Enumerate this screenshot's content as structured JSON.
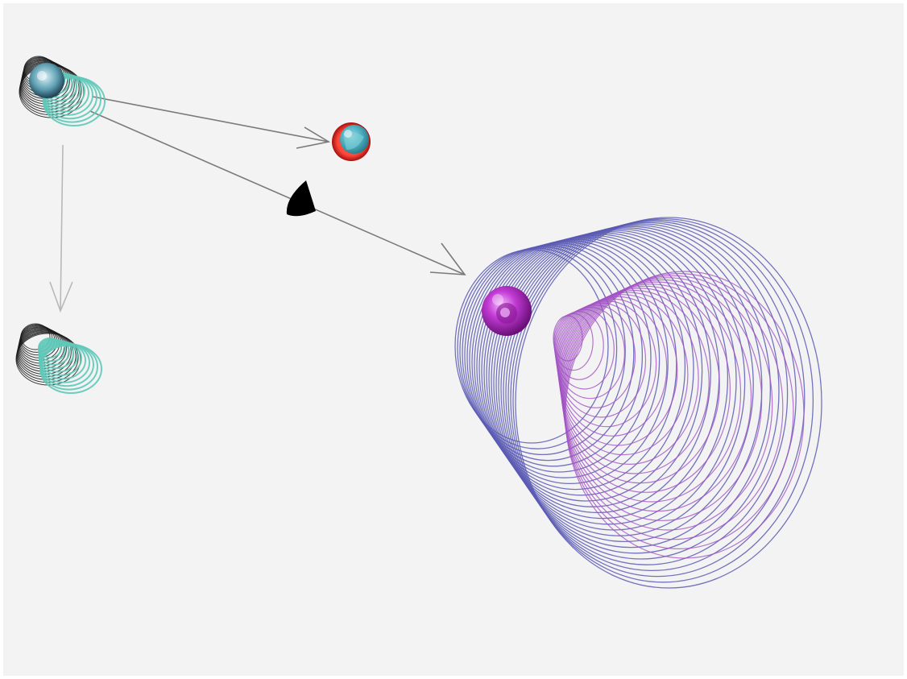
{
  "colors": {
    "background": "#f3f3f3",
    "arrow": "#7a7a7a",
    "arrow_light": "#b8b8b8",
    "wire_dark": "#1a1a1a",
    "wire_teal": "#5fc9b9",
    "wire_blue": "#5a5ab4",
    "wire_purple": "#a352c4",
    "sphere_red": "#d81f1f",
    "sphere_magenta": "#b228c0",
    "cone_black": "#000000"
  },
  "diagram": {
    "nodes": [
      {
        "id": "source-shell",
        "shape": "wireframe-shell"
      },
      {
        "id": "red-sphere",
        "shape": "sphere"
      },
      {
        "id": "down-shell",
        "shape": "wireframe-shell"
      },
      {
        "id": "black-cone",
        "shape": "cone"
      },
      {
        "id": "large-shell",
        "shape": "wireframe-shell"
      }
    ],
    "edges": [
      {
        "from": "source-shell",
        "to": "red-sphere"
      },
      {
        "from": "source-shell",
        "to": "large-shell",
        "via": "black-cone"
      },
      {
        "from": "source-shell",
        "to": "down-shell"
      }
    ]
  }
}
